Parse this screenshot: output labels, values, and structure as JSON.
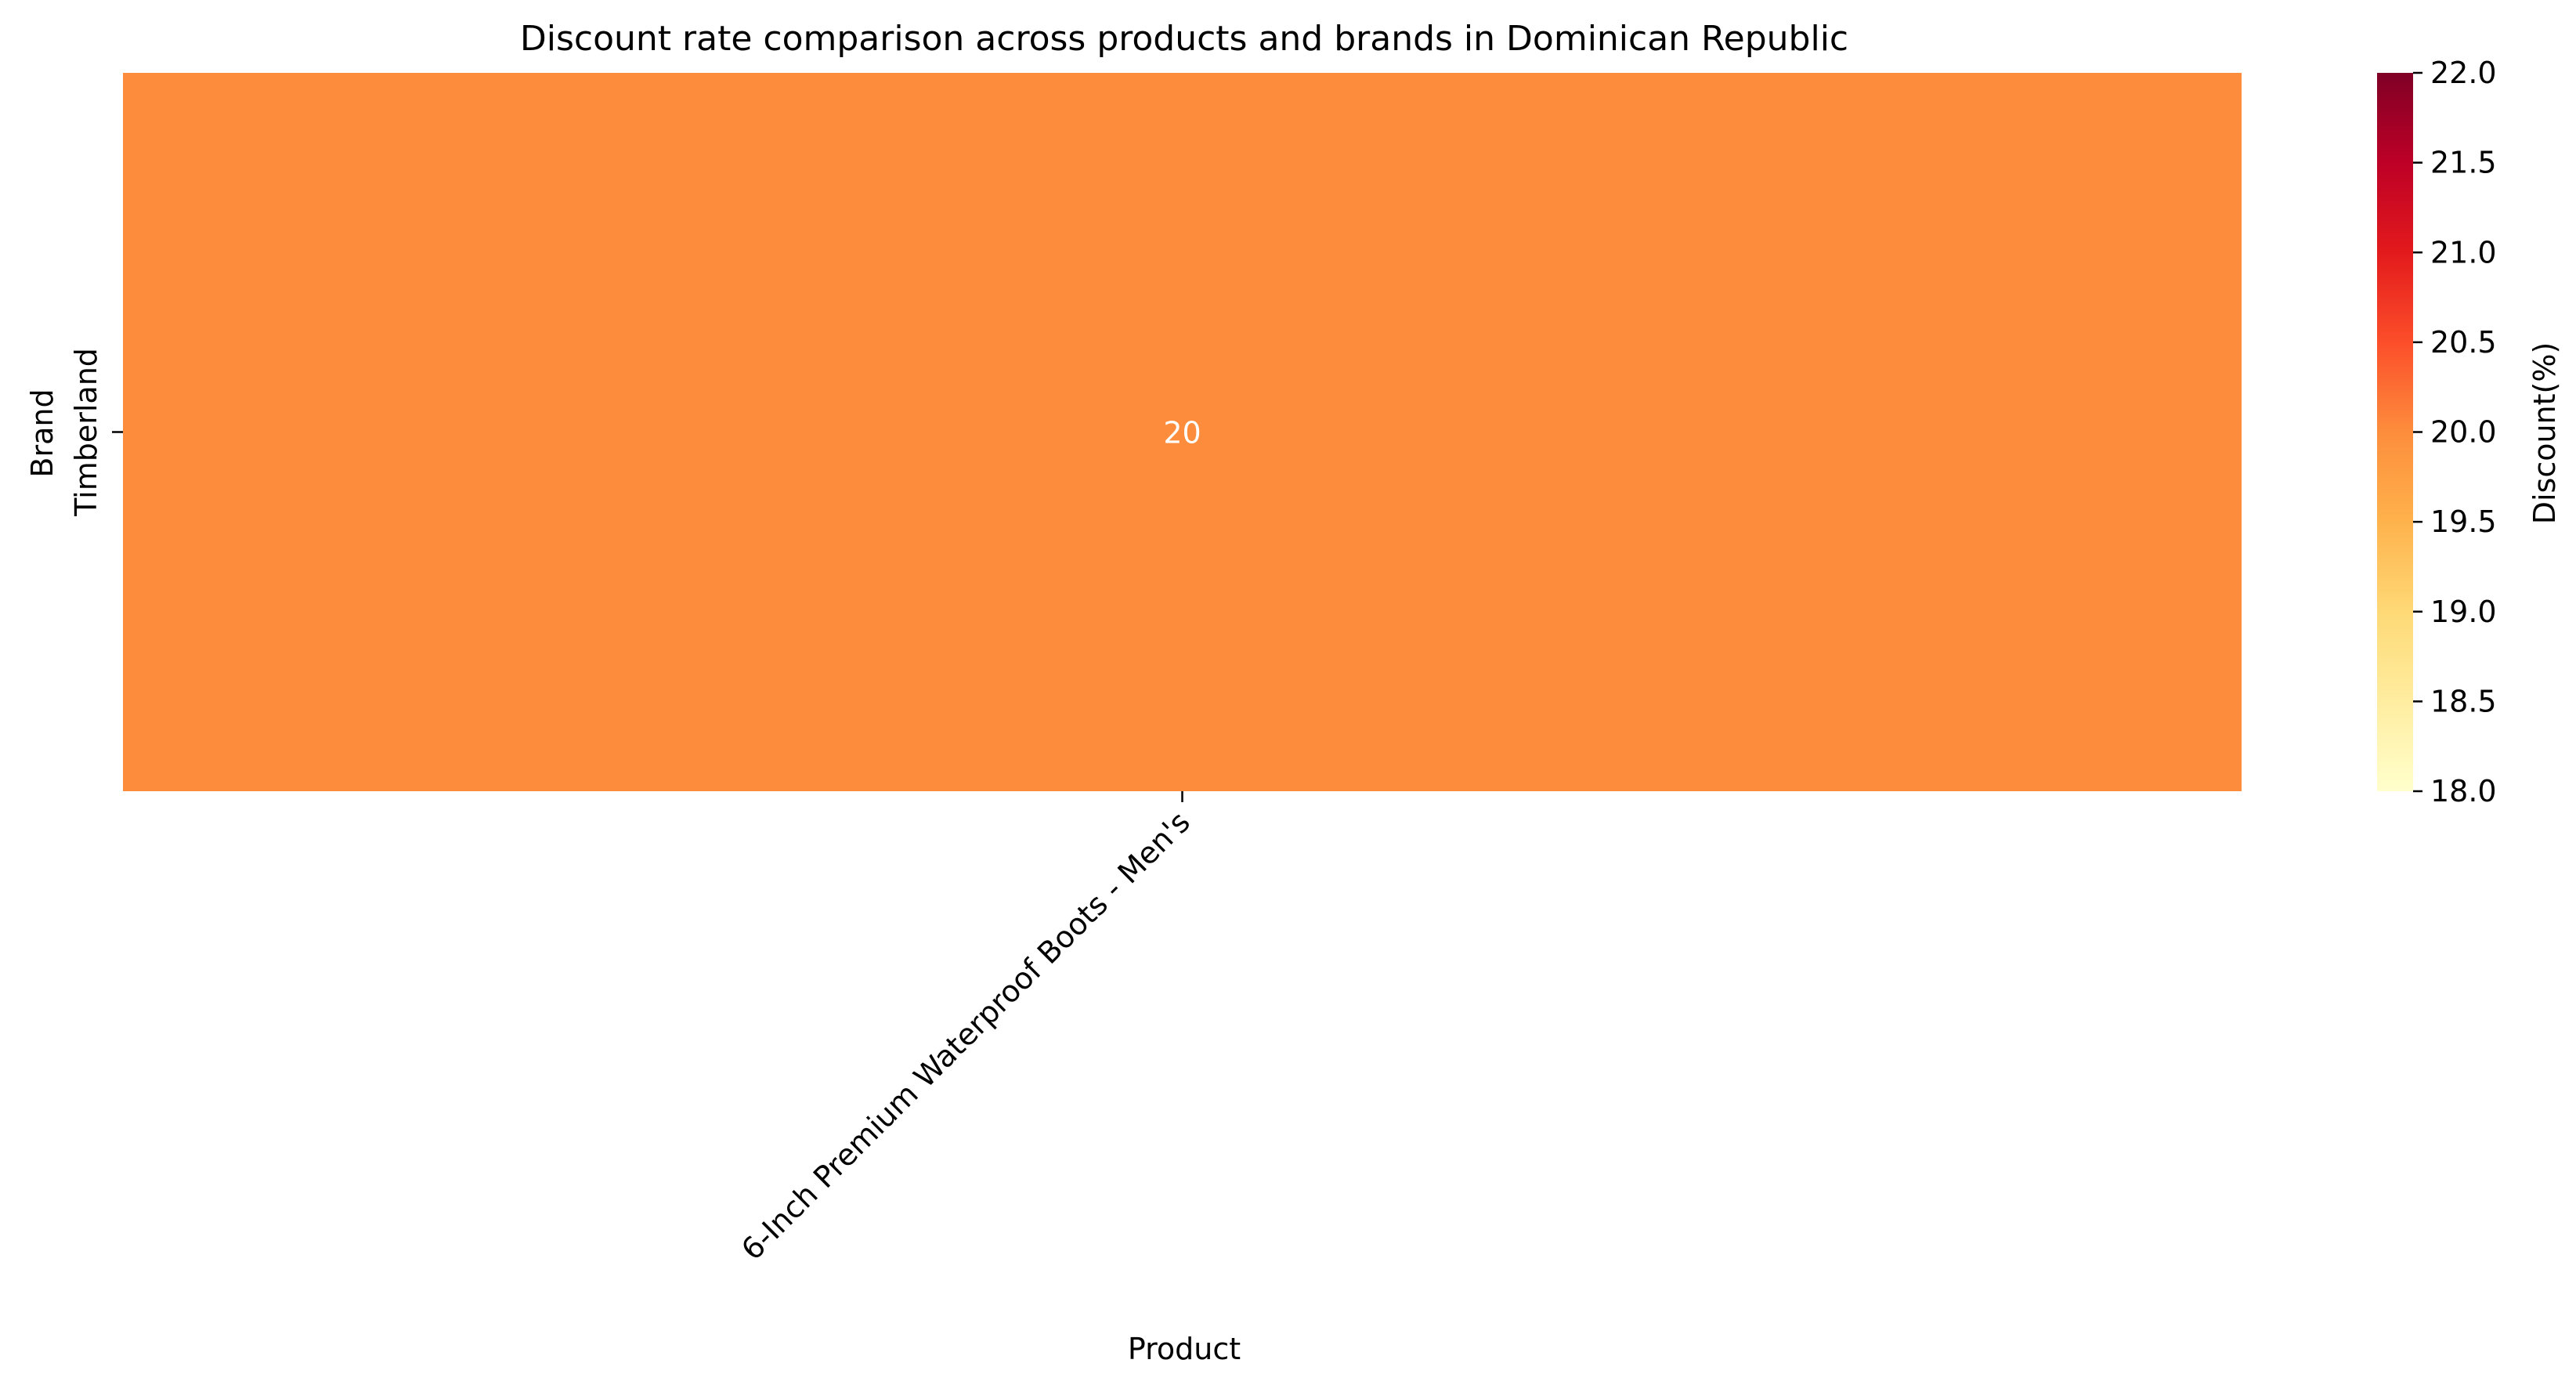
{
  "chart_data": {
    "type": "heatmap",
    "title": "Discount rate comparison across products and brands in Dominican Republic",
    "xlabel": "Product",
    "ylabel": "Brand",
    "x_categories": [
      "6-Inch Premium Waterproof Boots - Men's"
    ],
    "y_categories": [
      "Timberland"
    ],
    "values": [
      [
        20
      ]
    ],
    "cell_labels": [
      [
        "20"
      ]
    ],
    "colorbar": {
      "label": "Discount(%)",
      "vmin": 18.0,
      "vmax": 22.0,
      "ticks": [
        "18.0",
        "18.5",
        "19.0",
        "19.5",
        "20.0",
        "20.5",
        "21.0",
        "21.5",
        "22.0"
      ],
      "colormap": "YlOrRd",
      "stops": [
        "#ffffcc",
        "#ffeda0",
        "#fed976",
        "#feb24c",
        "#fd8d3c",
        "#fc4e2a",
        "#e31a1c",
        "#bd0026",
        "#800026"
      ]
    },
    "cell_label_color": "#ffffff",
    "grid": false
  }
}
